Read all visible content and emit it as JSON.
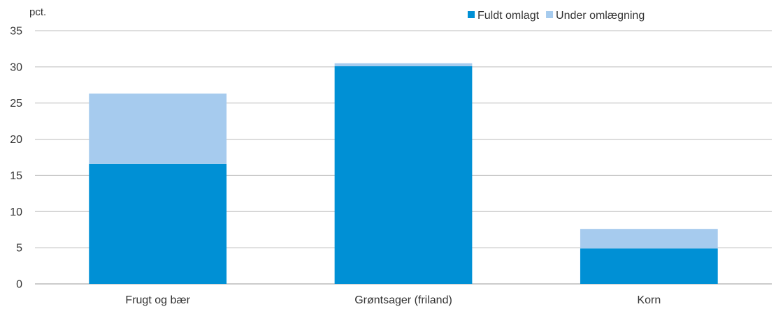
{
  "chart_data": {
    "type": "bar",
    "stacked": true,
    "unit_label": "pct.",
    "categories": [
      "Frugt og bær",
      "Grøntsager (friland)",
      "Korn"
    ],
    "series": [
      {
        "name": "Fuldt omlagt",
        "values": [
          16.6,
          30.1,
          4.9
        ],
        "color": "#0090d5"
      },
      {
        "name": "Under omlægning",
        "values": [
          9.7,
          0.4,
          2.7
        ],
        "color": "#a6cbee"
      }
    ],
    "ylim": [
      0,
      35
    ],
    "yticks": [
      0,
      5,
      10,
      15,
      20,
      25,
      30,
      35
    ],
    "grid": true,
    "legend_position": "top-right"
  }
}
